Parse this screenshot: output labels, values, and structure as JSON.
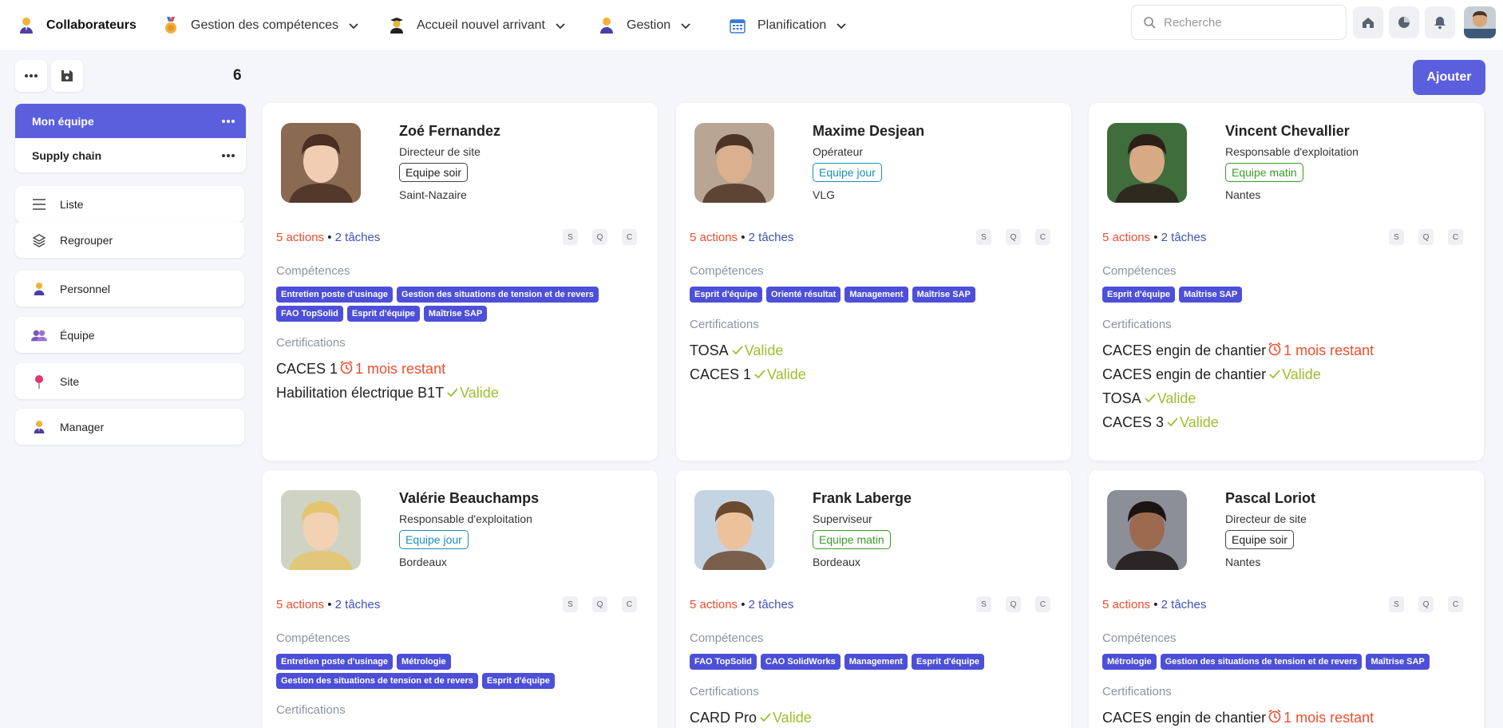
{
  "nav": {
    "brand": "Collaborateurs",
    "items": [
      {
        "label": "Gestion des compétences"
      },
      {
        "label": "Accueil nouvel arrivant"
      },
      {
        "label": "Gestion"
      },
      {
        "label": "Planification"
      }
    ],
    "search_placeholder": "Recherche"
  },
  "toolbar": {
    "count": "6",
    "add_label": "Ajouter"
  },
  "teams": [
    {
      "label": "Mon équipe",
      "active": true
    },
    {
      "label": "Supply chain",
      "active": false
    }
  ],
  "views": [
    {
      "label": "Liste"
    },
    {
      "label": "Regrouper"
    }
  ],
  "groupings": [
    {
      "label": "Personnel"
    },
    {
      "label": "Équipe"
    },
    {
      "label": "Site"
    },
    {
      "label": "Manager"
    }
  ],
  "labels": {
    "competences": "Compétences",
    "certifications": "Certifications",
    "valid": "Valide",
    "badges": [
      "S",
      "Q",
      "C"
    ],
    "bullet": " • "
  },
  "cards": [
    {
      "name": "Zoé Fernandez",
      "role": "Directeur de site",
      "team": "Equipe soir",
      "team_type": "soir",
      "site": "Saint-Nazaire",
      "actions": "5 actions",
      "tasks": "2 tâches",
      "skills": [
        "Entretien poste d'usinage",
        "Gestion des situations de tension et de revers",
        "FAO TopSolid",
        "Esprit d'équipe",
        "Maîtrise SAP"
      ],
      "certs": [
        {
          "name": "CACES 1",
          "status": "warn",
          "text": "1 mois restant"
        },
        {
          "name": "Habilitation électrique B1T",
          "status": "ok",
          "text": "Valide"
        }
      ]
    },
    {
      "name": "Maxime Desjean",
      "role": "Opérateur",
      "team": "Equipe jour",
      "team_type": "jour",
      "site": "VLG",
      "actions": "5 actions",
      "tasks": "2 tâches",
      "skills": [
        "Esprit d'équipe",
        "Orienté résultat",
        "Management",
        "Maîtrise SAP"
      ],
      "certs": [
        {
          "name": "TOSA",
          "status": "ok",
          "text": "Valide"
        },
        {
          "name": "CACES 1",
          "status": "ok",
          "text": "Valide"
        }
      ]
    },
    {
      "name": "Vincent Chevallier",
      "role": "Responsable d'exploitation",
      "team": "Equipe matin",
      "team_type": "matin",
      "site": "Nantes",
      "actions": "5 actions",
      "tasks": "2 tâches",
      "skills": [
        "Esprit d'équipe",
        "Maîtrise SAP"
      ],
      "certs": [
        {
          "name": "CACES engin de chantier",
          "status": "warn",
          "text": "1 mois restant"
        },
        {
          "name": "CACES engin de chantier",
          "status": "ok",
          "text": "Valide"
        },
        {
          "name": "TOSA",
          "status": "ok",
          "text": "Valide"
        },
        {
          "name": "CACES 3",
          "status": "ok",
          "text": "Valide"
        }
      ]
    },
    {
      "name": "Valérie Beauchamps",
      "role": "Responsable d'exploitation",
      "team": "Equipe jour",
      "team_type": "jour",
      "site": "Bordeaux",
      "actions": "5 actions",
      "tasks": "2 tâches",
      "skills": [
        "Entretien poste d'usinage",
        "Métrologie",
        "Gestion des situations de tension et de revers",
        "Esprit d'équipe"
      ],
      "certs": []
    },
    {
      "name": "Frank Laberge",
      "role": "Superviseur",
      "team": "Equipe matin",
      "team_type": "matin",
      "site": "Bordeaux",
      "actions": "5 actions",
      "tasks": "2 tâches",
      "skills": [
        "FAO TopSolid",
        "CAO SolidWorks",
        "Management",
        "Esprit d'équipe"
      ],
      "certs": [
        {
          "name": "CARD Pro",
          "status": "ok",
          "text": "Valide"
        }
      ]
    },
    {
      "name": "Pascal Loriot",
      "role": "Directeur de site",
      "team": "Equipe soir",
      "team_type": "soir",
      "site": "Nantes",
      "actions": "5 actions",
      "tasks": "2 tâches",
      "skills": [
        "Métrologie",
        "Gestion des situations de tension et de revers",
        "Maîtrise SAP"
      ],
      "certs": [
        {
          "name": "CACES engin de chantier",
          "status": "warn",
          "text": "1 mois restant"
        }
      ]
    }
  ],
  "colors": {
    "accent": "#5b5fde",
    "chip": "#4d4fd8",
    "actions": "#ee4d2d",
    "tasks": "#3f51b5",
    "valid": "#9bbf2f"
  }
}
